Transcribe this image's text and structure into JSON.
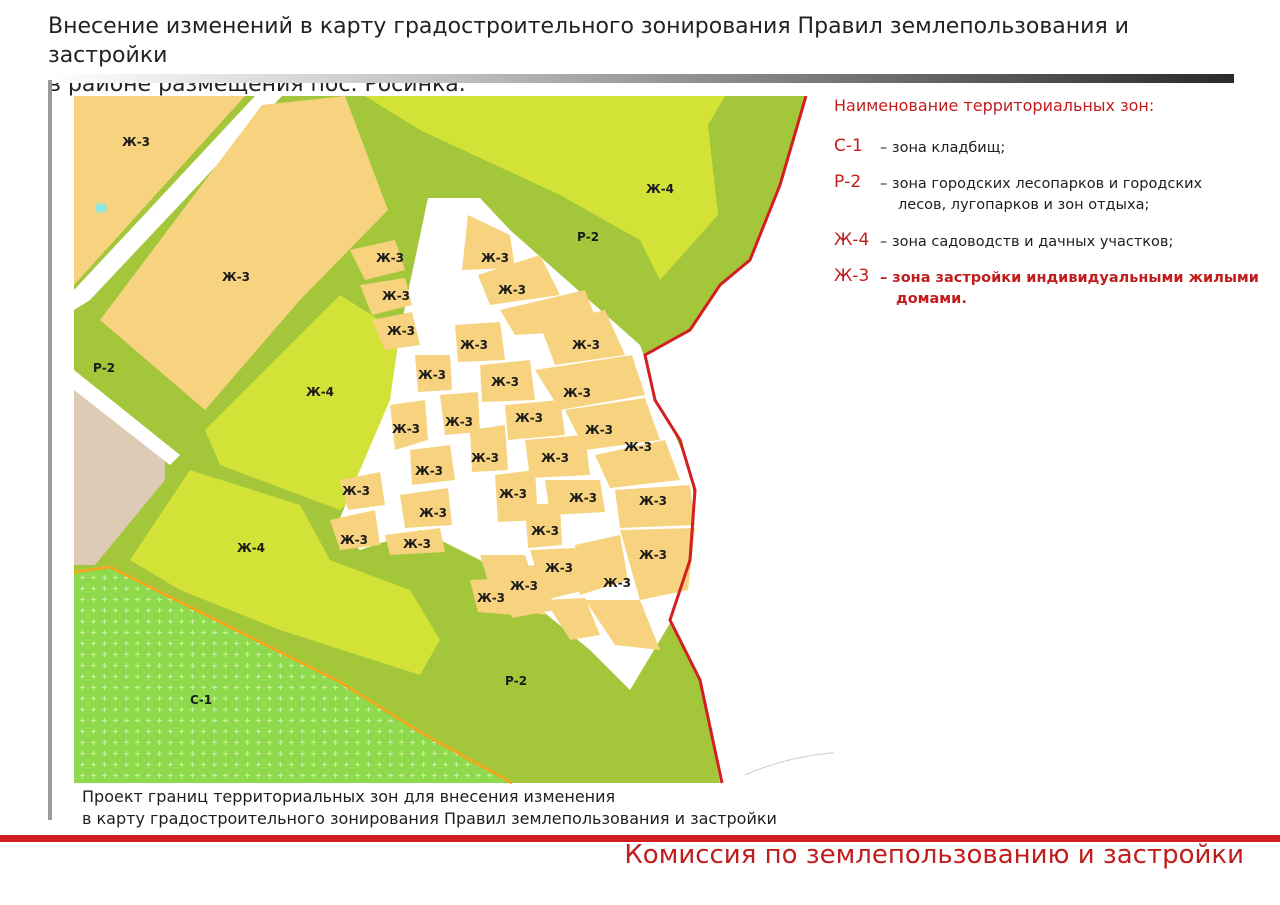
{
  "header": {
    "title_line1": "Внесение изменений в карту градостроительного зонирования Правил землепользования и застройки",
    "title_line2": "в районе размещения пос. Росинка."
  },
  "legend": {
    "title": "Наименование территориальных зон:",
    "items": [
      {
        "code": "С-1",
        "desc1": "– зона кладбищ;",
        "desc2": ""
      },
      {
        "code": "Р-2",
        "desc1": "– зона   городских лесопарков и городских",
        "desc2": "лесов, лугопарков и зон отдыха;"
      },
      {
        "code": "Ж-4",
        "desc1": "– зона садоводств и дачных участков;",
        "desc2": ""
      },
      {
        "code": "Ж-3",
        "desc1": "– зона застройки индивидуальными жилыми",
        "desc2": "домами."
      }
    ]
  },
  "map_labels": {
    "zh3": "Ж-3",
    "zh4": "Ж-4",
    "r2": "Р-2",
    "c1": "С-1"
  },
  "colors": {
    "zh3": "#f7d37f",
    "zh4": "#d2e237",
    "r2": "#a3c63b",
    "c1": "#8fd94d",
    "border": "#d31f1f",
    "accent": "#c21d1d"
  },
  "caption": {
    "line1": "Проект границ территориальных зон для внесения изменения",
    "line2": "в карту градостроительного зонирования Правил  землепользования и застройки"
  },
  "footer": {
    "commission": "Комиссия по землепользованию и застройки"
  }
}
